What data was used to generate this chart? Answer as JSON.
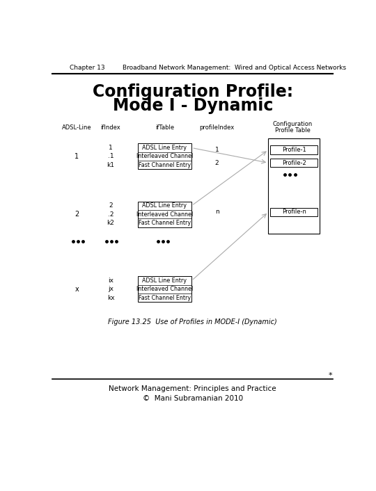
{
  "header_left": "Chapter 13",
  "header_right": "Broadband Network Management:  Wired and Optical Access Networks",
  "title_line1": "Configuration Profile:",
  "title_line2": "Mode I - Dynamic",
  "group1": {
    "adsl_line": "1",
    "rows": [
      {
        "ifindex": "1",
        "label": "ADSL Line Entry"
      },
      {
        "ifindex": ".1",
        "label": "Interleaved Channel"
      },
      {
        "ifindex": "k1",
        "label": "Fast Channel Entry"
      }
    ]
  },
  "group2": {
    "adsl_line": "2",
    "rows": [
      {
        "ifindex": "2",
        "label": "ADSL Line Entry"
      },
      {
        "ifindex": ".2",
        "label": "Interleaved Channel"
      },
      {
        "ifindex": "k2",
        "label": "Fast Channel Entry"
      }
    ]
  },
  "group3": {
    "adsl_line": "x",
    "rows": [
      {
        "ifindex": "ix",
        "label": "ADSL Line Entry"
      },
      {
        "ifindex": "jx",
        "label": "Interleaved Channel"
      },
      {
        "ifindex": "kx",
        "label": "Fast Channel Entry"
      }
    ]
  },
  "profile_entries": [
    "Profile-1",
    "Profile-2",
    "Profile-n"
  ],
  "profile_indices": [
    "1",
    "2",
    "n"
  ],
  "figure_caption": "Figure 13.25  Use of Profiles in MODE-I (Dynamic)",
  "footer_line1": "Network Management: Principles and Practice",
  "footer_line2": "©  Mani Subramanian 2010",
  "star": "*",
  "bg_color": "#ffffff",
  "text_color": "#000000"
}
